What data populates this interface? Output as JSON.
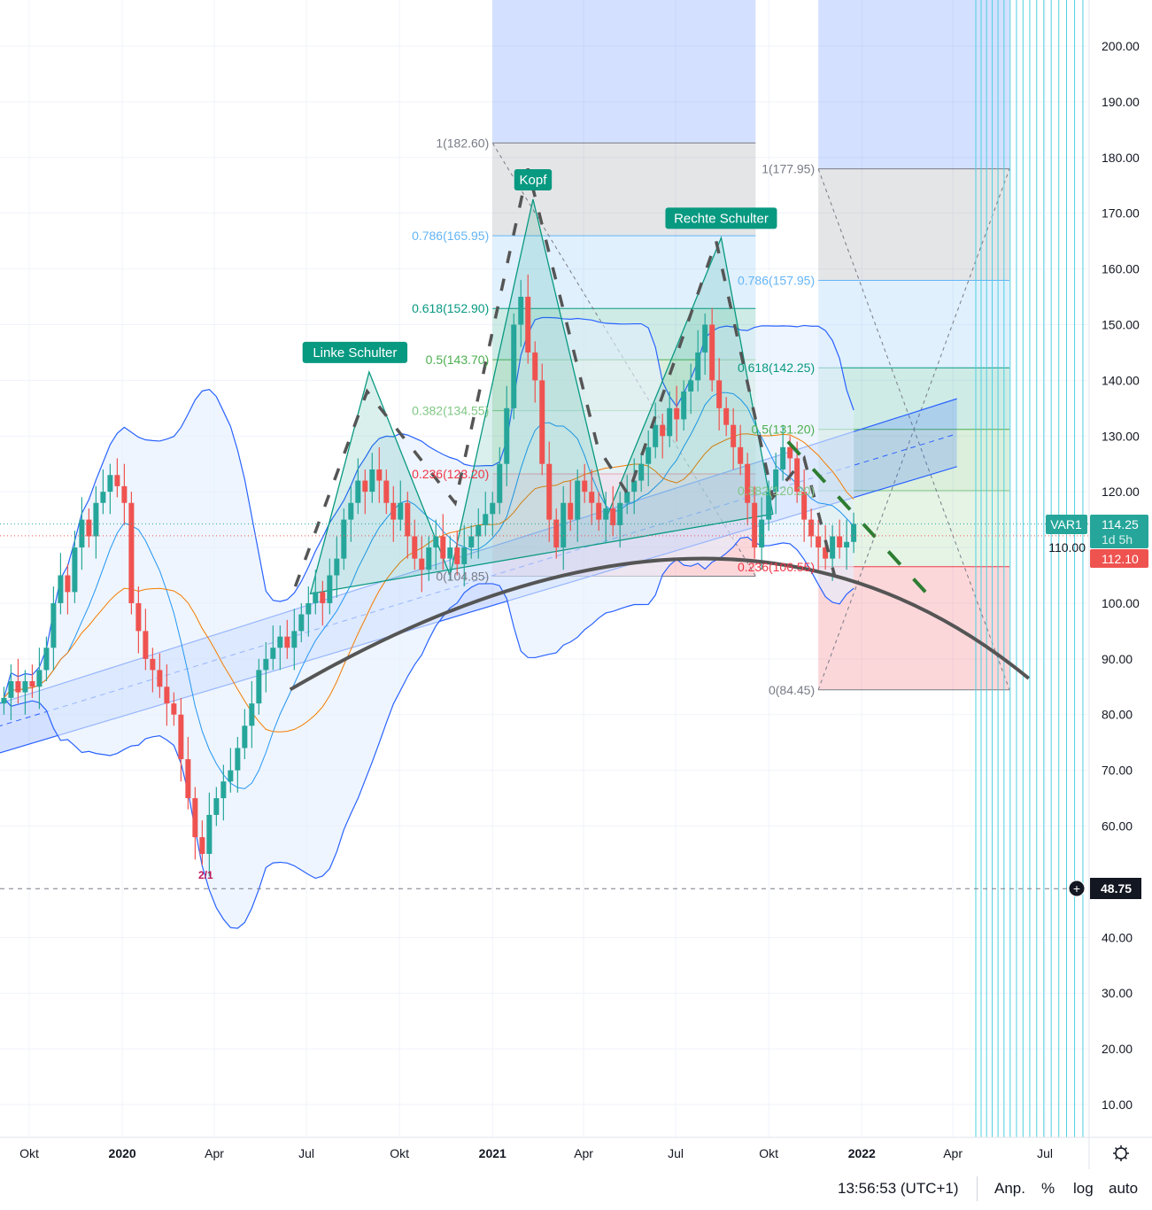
{
  "chart_data": {
    "type": "candlestick",
    "title": "",
    "y_axis": {
      "scale": "linear",
      "range": [
        5,
        205
      ],
      "ticks": [
        "200.00",
        "190.00",
        "180.00",
        "170.00",
        "160.00",
        "150.00",
        "140.00",
        "130.00",
        "120.00",
        "110.00",
        "100.00",
        "90.00",
        "80.00",
        "70.00",
        "60.00",
        "40.00",
        "30.00",
        "20.00",
        "10.00"
      ]
    },
    "x_axis": {
      "range": [
        "2019-08-15",
        "2022-09-15"
      ],
      "ticks": [
        {
          "label": "Okt",
          "date": "2019-10-01",
          "bold": false
        },
        {
          "label": "2020",
          "date": "2020-01-01",
          "bold": true
        },
        {
          "label": "Apr",
          "date": "2020-04-01",
          "bold": false
        },
        {
          "label": "Jul",
          "date": "2020-07-01",
          "bold": false
        },
        {
          "label": "Okt",
          "date": "2020-10-01",
          "bold": false
        },
        {
          "label": "2021",
          "date": "2021-01-01",
          "bold": true
        },
        {
          "label": "Apr",
          "date": "2021-04-01",
          "bold": false
        },
        {
          "label": "Jul",
          "date": "2021-07-01",
          "bold": false
        },
        {
          "label": "Okt",
          "date": "2021-10-01",
          "bold": false
        },
        {
          "label": "2022",
          "date": "2022-01-01",
          "bold": true
        },
        {
          "label": "Apr",
          "date": "2022-04-01",
          "bold": false
        },
        {
          "label": "Jul",
          "date": "2022-07-01",
          "bold": false
        }
      ]
    },
    "grid": true,
    "candles": {
      "interval": "1W",
      "first_date": "2019-09-06",
      "closes": [
        83,
        86,
        84,
        86,
        85,
        88,
        92,
        100,
        105,
        102,
        110,
        115,
        112,
        118,
        120,
        123,
        121,
        118,
        100,
        95,
        90,
        88,
        85,
        82,
        80,
        72,
        65,
        58,
        55,
        62,
        65,
        68,
        70,
        74,
        78,
        82,
        88,
        90,
        92,
        94,
        92,
        95,
        98,
        100,
        102,
        100,
        105,
        108,
        115,
        118,
        122,
        120,
        124,
        122,
        118,
        115,
        118,
        112,
        108,
        106,
        110,
        112,
        108,
        110,
        107,
        110,
        112,
        114,
        116,
        118,
        125,
        135,
        150,
        155,
        145,
        140,
        125,
        115,
        110,
        118,
        115,
        122,
        120,
        118,
        115,
        117,
        114,
        118,
        120,
        122,
        125,
        128,
        132,
        130,
        135,
        133,
        138,
        140,
        145,
        150,
        140,
        135,
        132,
        128,
        125,
        118,
        110,
        115,
        120,
        124,
        128,
        126,
        120,
        115,
        112,
        110,
        108,
        112,
        110,
        111,
        114.25
      ],
      "up_color": "#26a69a",
      "down_color": "#ef5350"
    },
    "indicators": {
      "bollinger": {
        "color": "#2962ff",
        "fill": "#e3effd"
      },
      "moving_average": {
        "color": "#f57c00"
      }
    },
    "current_price": {
      "symbol": "VAR1",
      "value": "114.25",
      "countdown": "1d 5h",
      "color": "#26a69a"
    },
    "prev_price": {
      "value": "112.10",
      "color": "#ef5350"
    },
    "crosshair": {
      "value": "48.75"
    },
    "fib_retracements": [
      {
        "start": "2021-01-01",
        "end": "2021-09-18",
        "low": 104.85,
        "high": 182.6,
        "levels": [
          {
            "ratio": "1",
            "price": "182.60",
            "color": "#787b86"
          },
          {
            "ratio": "0.786",
            "price": "165.95",
            "color": "#64b5f6"
          },
          {
            "ratio": "0.618",
            "price": "152.90",
            "color": "#089981"
          },
          {
            "ratio": "0.5",
            "price": "143.70",
            "color": "#4caf50"
          },
          {
            "ratio": "0.382",
            "price": "134.55",
            "color": "#81c784"
          },
          {
            "ratio": "0.236",
            "price": "123.20",
            "color": "#f23645"
          },
          {
            "ratio": "0",
            "price": "104.85",
            "color": "#787b86"
          }
        ]
      },
      {
        "start": "2021-11-19",
        "end": "2022-05-27",
        "low": 84.45,
        "high": 177.95,
        "levels": [
          {
            "ratio": "1",
            "price": "177.95",
            "color": "#787b86"
          },
          {
            "ratio": "0.786",
            "price": "157.95",
            "color": "#64b5f6"
          },
          {
            "ratio": "0.618",
            "price": "142.25",
            "color": "#089981"
          },
          {
            "ratio": "0.5",
            "price": "131.20",
            "color": "#4caf50"
          },
          {
            "ratio": "0.382",
            "price": "120.20",
            "color": "#81c784"
          },
          {
            "ratio": "0.236",
            "price": "106.55",
            "color": "#f23645"
          },
          {
            "ratio": "0",
            "price": "84.45",
            "color": "#787b86"
          }
        ]
      }
    ],
    "head_shoulders": {
      "color": "#089981",
      "points": [
        [
          "2020-07-05",
          101.7
        ],
        [
          "2020-09-01",
          141.5
        ],
        [
          "2020-11-20",
          105
        ],
        [
          "2021-02-10",
          172.5
        ],
        [
          "2021-04-25",
          116
        ],
        [
          "2021-08-15",
          165.6
        ],
        [
          "2021-10-05",
          116
        ]
      ],
      "labels": [
        {
          "text": "Linke Schulter",
          "date": "2020-09-01",
          "price": 141.5
        },
        {
          "text": "Kopf",
          "date": "2021-02-10",
          "price": 172.5
        },
        {
          "text": "Rechte Schulter",
          "date": "2021-08-15",
          "price": 165.6
        }
      ]
    },
    "regression_channel": {
      "start": "2019-08-03",
      "end": "2022-04-05",
      "upper": [
        80.3,
        136.7
      ],
      "middle": [
        76.3,
        130.4
      ],
      "lower": [
        71.5,
        124.5
      ]
    },
    "arc": {
      "points": [
        [
          "2020-06-15",
          84.5
        ],
        [
          "2021-07-20",
          108
        ],
        [
          "2022-06-15",
          86.5
        ]
      ],
      "color": "#555555"
    },
    "zigzag_dashed": {
      "color": "#555555",
      "points": [
        [
          "2020-06-20",
          103
        ],
        [
          "2020-08-30",
          138
        ],
        [
          "2020-11-25",
          118
        ],
        [
          "2021-02-05",
          178
        ],
        [
          "2021-04-15",
          128
        ],
        [
          "2021-05-15",
          119.5
        ],
        [
          "2021-08-10",
          165
        ],
        [
          "2021-10-05",
          119
        ],
        [
          "2021-11-05",
          126
        ],
        [
          "2021-12-05",
          105
        ]
      ]
    },
    "green_dashed": {
      "color": "#2e7d32",
      "points": [
        [
          "2021-10-20",
          129
        ],
        [
          "2022-03-15",
          100
        ]
      ]
    },
    "time_zone_lines": {
      "color": "#4dd0e1",
      "count": 17
    },
    "annotation_text": "2/1"
  },
  "status_bar": {
    "clock": "13:56:53 (UTC+1)",
    "adjust": "Anp.",
    "percent": "%",
    "log": "log",
    "auto": "auto"
  }
}
